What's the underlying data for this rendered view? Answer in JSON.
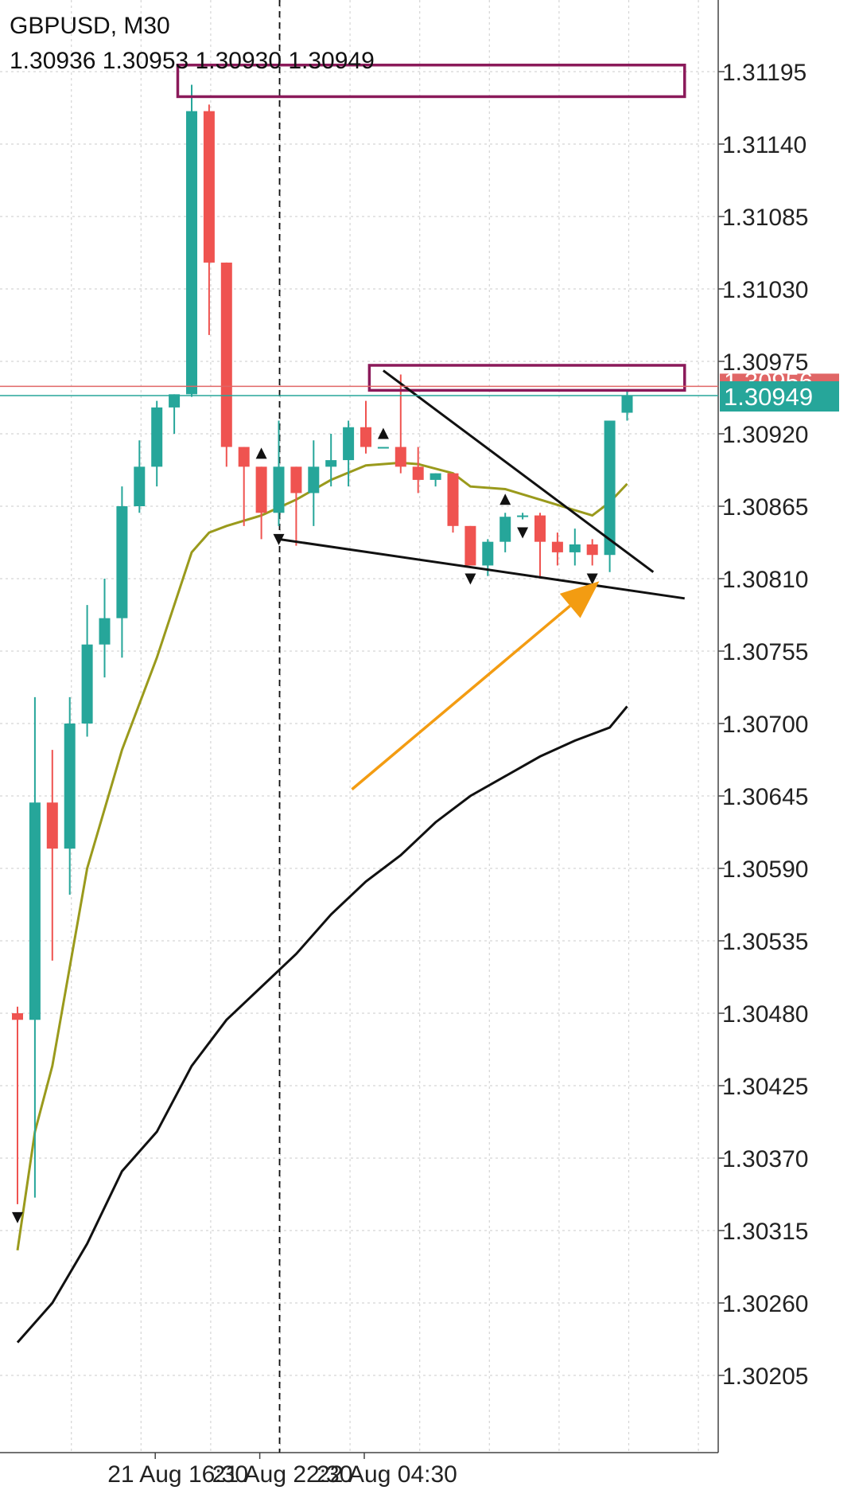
{
  "header": {
    "symbol": "GBPUSD, M30",
    "ohlc": "1.30936 1.30953 1.30930 1.30949"
  },
  "colors": {
    "bull": "#26a69a",
    "bear": "#ef5350",
    "fast_ma": "#9a9a1c",
    "slow_ma": "#111111",
    "zone": "#8b1a5a",
    "arrow": "#f39c12",
    "bid_line": "#26a69a",
    "ask_line": "#e06666"
  },
  "price_badge": {
    "bid": "1.30949",
    "ask_partial": "1.30956"
  },
  "chart_data": {
    "type": "candlestick",
    "symbol": "GBPUSD",
    "timeframe": "M30",
    "ylim": [
      1.3016,
      1.3124
    ],
    "y_ticks": [
      "1.31195",
      "1.31140",
      "1.31085",
      "1.31030",
      "1.30975",
      "1.30920",
      "1.30865",
      "1.30810",
      "1.30755",
      "1.30700",
      "1.30645",
      "1.30590",
      "1.30535",
      "1.30480",
      "1.30425",
      "1.30370",
      "1.30315",
      "1.30260",
      "1.30205"
    ],
    "x_labels": [
      {
        "index": 8,
        "text": "21 Aug 16:30"
      },
      {
        "index": 14,
        "text": "21 Aug 22:30"
      },
      {
        "index": 20,
        "text": "22 Aug 04:30"
      }
    ],
    "candles": [
      {
        "o": 1.3048,
        "h": 1.30485,
        "l": 1.30335,
        "c": 1.30475
      },
      {
        "o": 1.30475,
        "h": 1.3072,
        "l": 1.3034,
        "c": 1.3064
      },
      {
        "o": 1.3064,
        "h": 1.3068,
        "l": 1.3052,
        "c": 1.30605
      },
      {
        "o": 1.30605,
        "h": 1.3072,
        "l": 1.3057,
        "c": 1.307
      },
      {
        "o": 1.307,
        "h": 1.3079,
        "l": 1.3069,
        "c": 1.3076
      },
      {
        "o": 1.3076,
        "h": 1.3081,
        "l": 1.30735,
        "c": 1.3078
      },
      {
        "o": 1.3078,
        "h": 1.3088,
        "l": 1.3075,
        "c": 1.30865
      },
      {
        "o": 1.30865,
        "h": 1.30915,
        "l": 1.3086,
        "c": 1.30895
      },
      {
        "o": 1.30895,
        "h": 1.30945,
        "l": 1.3088,
        "c": 1.3094
      },
      {
        "o": 1.3094,
        "h": 1.3095,
        "l": 1.3092,
        "c": 1.3095
      },
      {
        "o": 1.3095,
        "h": 1.31185,
        "l": 1.30948,
        "c": 1.31165
      },
      {
        "o": 1.31165,
        "h": 1.3117,
        "l": 1.30995,
        "c": 1.3105
      },
      {
        "o": 1.3105,
        "h": 1.3105,
        "l": 1.30895,
        "c": 1.3091
      },
      {
        "o": 1.3091,
        "h": 1.3091,
        "l": 1.3085,
        "c": 1.30895
      },
      {
        "o": 1.30895,
        "h": 1.30895,
        "l": 1.3084,
        "c": 1.3086
      },
      {
        "o": 1.3086,
        "h": 1.3093,
        "l": 1.3085,
        "c": 1.30895
      },
      {
        "o": 1.30895,
        "h": 1.30895,
        "l": 1.30835,
        "c": 1.30875
      },
      {
        "o": 1.30875,
        "h": 1.30915,
        "l": 1.3085,
        "c": 1.30895
      },
      {
        "o": 1.30895,
        "h": 1.3092,
        "l": 1.3088,
        "c": 1.309
      },
      {
        "o": 1.309,
        "h": 1.3093,
        "l": 1.3088,
        "c": 1.30925
      },
      {
        "o": 1.30925,
        "h": 1.30945,
        "l": 1.30905,
        "c": 1.3091
      },
      {
        "o": 1.3091,
        "h": 1.3091,
        "l": 1.3091,
        "c": 1.3091
      },
      {
        "o": 1.3091,
        "h": 1.30965,
        "l": 1.3089,
        "c": 1.30895
      },
      {
        "o": 1.30895,
        "h": 1.3091,
        "l": 1.30875,
        "c": 1.30885
      },
      {
        "o": 1.30885,
        "h": 1.3089,
        "l": 1.3088,
        "c": 1.3089
      },
      {
        "o": 1.3089,
        "h": 1.3089,
        "l": 1.30845,
        "c": 1.3085
      },
      {
        "o": 1.3085,
        "h": 1.3085,
        "l": 1.3082,
        "c": 1.3082
      },
      {
        "o": 1.3082,
        "h": 1.3084,
        "l": 1.30812,
        "c": 1.30838
      },
      {
        "o": 1.30838,
        "h": 1.3086,
        "l": 1.3083,
        "c": 1.30857
      },
      {
        "o": 1.30857,
        "h": 1.3086,
        "l": 1.30855,
        "c": 1.30858
      },
      {
        "o": 1.30858,
        "h": 1.3086,
        "l": 1.3081,
        "c": 1.30838
      },
      {
        "o": 1.30838,
        "h": 1.30845,
        "l": 1.3082,
        "c": 1.3083
      },
      {
        "o": 1.3083,
        "h": 1.30848,
        "l": 1.3082,
        "c": 1.30836
      },
      {
        "o": 1.30836,
        "h": 1.3084,
        "l": 1.3082,
        "c": 1.30828
      },
      {
        "o": 1.30828,
        "h": 1.3093,
        "l": 1.30815,
        "c": 1.3093
      },
      {
        "o": 1.30936,
        "h": 1.30953,
        "l": 1.3093,
        "c": 1.30949
      }
    ],
    "fast_ma": [
      {
        "i": 0,
        "v": 1.303
      },
      {
        "i": 1,
        "v": 1.3039
      },
      {
        "i": 2,
        "v": 1.3044
      },
      {
        "i": 4,
        "v": 1.3059
      },
      {
        "i": 6,
        "v": 1.3068
      },
      {
        "i": 8,
        "v": 1.3075
      },
      {
        "i": 9,
        "v": 1.3079
      },
      {
        "i": 10,
        "v": 1.3083
      },
      {
        "i": 11,
        "v": 1.30845
      },
      {
        "i": 12,
        "v": 1.3085
      },
      {
        "i": 14,
        "v": 1.30858
      },
      {
        "i": 16,
        "v": 1.3087
      },
      {
        "i": 18,
        "v": 1.30885
      },
      {
        "i": 20,
        "v": 1.30896
      },
      {
        "i": 22,
        "v": 1.30898
      },
      {
        "i": 23,
        "v": 1.30897
      },
      {
        "i": 25,
        "v": 1.3089
      },
      {
        "i": 26,
        "v": 1.3088
      },
      {
        "i": 28,
        "v": 1.30878
      },
      {
        "i": 30,
        "v": 1.3087
      },
      {
        "i": 32,
        "v": 1.30862
      },
      {
        "i": 33,
        "v": 1.30858
      },
      {
        "i": 34,
        "v": 1.30868
      },
      {
        "i": 35,
        "v": 1.30882
      }
    ],
    "slow_ma": [
      {
        "i": 0,
        "v": 1.3023
      },
      {
        "i": 2,
        "v": 1.3026
      },
      {
        "i": 4,
        "v": 1.30305
      },
      {
        "i": 6,
        "v": 1.3036
      },
      {
        "i": 8,
        "v": 1.3039
      },
      {
        "i": 10,
        "v": 1.3044
      },
      {
        "i": 12,
        "v": 1.30475
      },
      {
        "i": 14,
        "v": 1.305
      },
      {
        "i": 16,
        "v": 1.30525
      },
      {
        "i": 18,
        "v": 1.30555
      },
      {
        "i": 20,
        "v": 1.3058
      },
      {
        "i": 22,
        "v": 1.306
      },
      {
        "i": 24,
        "v": 1.30625
      },
      {
        "i": 26,
        "v": 1.30645
      },
      {
        "i": 28,
        "v": 1.3066
      },
      {
        "i": 30,
        "v": 1.30675
      },
      {
        "i": 32,
        "v": 1.30687
      },
      {
        "i": 34,
        "v": 1.30697
      },
      {
        "i": 35,
        "v": 1.30713
      }
    ],
    "zones": [
      {
        "i_start": 9.2,
        "i_end": 38.3,
        "top": 1.312,
        "bottom": 1.31176
      },
      {
        "i_start": 20.2,
        "i_end": 38.3,
        "top": 1.30972,
        "bottom": 1.30953
      }
    ],
    "trendlines": [
      {
        "i1": 21,
        "v1": 1.30968,
        "i2": 36.5,
        "v2": 1.30815
      },
      {
        "i1": 15,
        "v1": 1.3084,
        "i2": 38.3,
        "v2": 1.30795
      }
    ],
    "bid": 1.30949,
    "ask": 1.30956,
    "vline_index": 15,
    "arrow": {
      "i1": 19.2,
      "v1": 1.3065,
      "i2": 33.4,
      "v2": 1.30808
    },
    "fractals_up": [
      14,
      21,
      28
    ],
    "fractals_down": [
      0,
      15,
      26,
      29,
      33
    ]
  }
}
